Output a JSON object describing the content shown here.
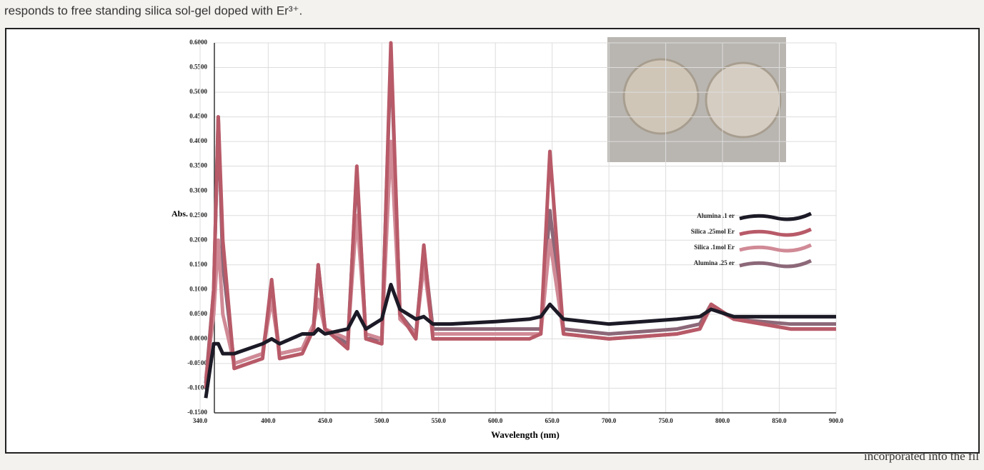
{
  "page_text": {
    "top": "responds to free standing silica sol-gel doped with Er³⁺.",
    "bottom": "incorporated into the fil"
  },
  "chart_data": {
    "type": "line",
    "xlabel": "Wavelength  (nm)",
    "ylabel": "Abs.",
    "xlim": [
      340,
      900
    ],
    "ylim": [
      -0.15,
      0.6
    ],
    "xticks": [
      {
        "value": 340,
        "label": "340.0"
      },
      {
        "value": 400,
        "label": "400.0"
      },
      {
        "value": 450,
        "label": "450.0"
      },
      {
        "value": 500,
        "label": "500.0"
      },
      {
        "value": 550,
        "label": "550.0"
      },
      {
        "value": 600,
        "label": "600.0"
      },
      {
        "value": 650,
        "label": "650.0"
      },
      {
        "value": 700,
        "label": "700.0"
      },
      {
        "value": 750,
        "label": "750.0"
      },
      {
        "value": 800,
        "label": "800.0"
      },
      {
        "value": 850,
        "label": "850.0"
      },
      {
        "value": 900,
        "label": "900.0"
      }
    ],
    "yticks": [
      {
        "value": -0.15,
        "label": "-0.1500"
      },
      {
        "value": -0.1,
        "label": "-0.1000"
      },
      {
        "value": -0.05,
        "label": "-0.0500"
      },
      {
        "value": 0,
        "label": "0.0000"
      },
      {
        "value": 0.05,
        "label": "0.0500"
      },
      {
        "value": 0.1,
        "label": "0.1000"
      },
      {
        "value": 0.15,
        "label": "0.1500"
      },
      {
        "value": 0.2,
        "label": "0.2000"
      },
      {
        "value": 0.25,
        "label": "0.2500"
      },
      {
        "value": 0.3,
        "label": "0.3000"
      },
      {
        "value": 0.35,
        "label": "0.3500"
      },
      {
        "value": 0.4,
        "label": "0.4000"
      },
      {
        "value": 0.45,
        "label": "0.4500"
      },
      {
        "value": 0.5,
        "label": "0.5000"
      },
      {
        "value": 0.55,
        "label": "0.5500"
      },
      {
        "value": 0.6,
        "label": "0.6000"
      }
    ],
    "grid": true,
    "x": [
      345,
      352,
      356,
      360,
      370,
      395,
      403,
      410,
      430,
      440,
      444,
      450,
      470,
      478,
      486,
      500,
      508,
      516,
      530,
      537,
      545,
      560,
      600,
      630,
      640,
      648,
      660,
      700,
      760,
      780,
      790,
      810,
      860,
      900
    ],
    "series": [
      {
        "name": "Alumina .1 er",
        "color": "#1c1a26",
        "values": [
          -0.12,
          -0.01,
          -0.01,
          -0.03,
          -0.03,
          -0.01,
          0.0,
          -0.01,
          0.01,
          0.01,
          0.02,
          0.01,
          0.02,
          0.055,
          0.02,
          0.04,
          0.11,
          0.06,
          0.04,
          0.045,
          0.03,
          0.03,
          0.035,
          0.04,
          0.045,
          0.07,
          0.04,
          0.03,
          0.04,
          0.045,
          0.06,
          0.045,
          0.045,
          0.045
        ]
      },
      {
        "name": "Silica .25mol Er",
        "color": "#b85a68",
        "values": [
          -0.1,
          0.1,
          0.45,
          0.2,
          -0.06,
          -0.04,
          0.12,
          -0.04,
          -0.03,
          0.02,
          0.15,
          0.02,
          -0.02,
          0.35,
          0.0,
          -0.01,
          0.6,
          0.05,
          0.0,
          0.19,
          0.0,
          0.0,
          0.0,
          0.0,
          0.01,
          0.38,
          0.01,
          0.0,
          0.01,
          0.02,
          0.07,
          0.04,
          0.02,
          0.02
        ]
      },
      {
        "name": "Silica .1mol Er",
        "color": "#d08a96",
        "values": [
          -0.08,
          0.05,
          0.2,
          0.05,
          -0.05,
          -0.03,
          0.08,
          -0.03,
          -0.02,
          0.03,
          0.08,
          0.02,
          0.0,
          0.25,
          0.01,
          0.0,
          0.4,
          0.04,
          0.01,
          0.15,
          0.01,
          0.01,
          0.01,
          0.01,
          0.01,
          0.2,
          0.01,
          0.0,
          0.01,
          0.02,
          0.065,
          0.04,
          0.02,
          0.02
        ]
      },
      {
        "name": "Alumina .25 er",
        "color": "#8c6878",
        "values": [
          -0.09,
          0.1,
          0.45,
          0.15,
          -0.05,
          -0.03,
          0.1,
          -0.03,
          -0.02,
          0.03,
          0.15,
          0.02,
          -0.01,
          0.34,
          0.0,
          0.0,
          0.58,
          0.05,
          0.01,
          0.18,
          0.02,
          0.02,
          0.02,
          0.02,
          0.02,
          0.26,
          0.02,
          0.01,
          0.02,
          0.03,
          0.07,
          0.04,
          0.03,
          0.03
        ]
      }
    ]
  }
}
